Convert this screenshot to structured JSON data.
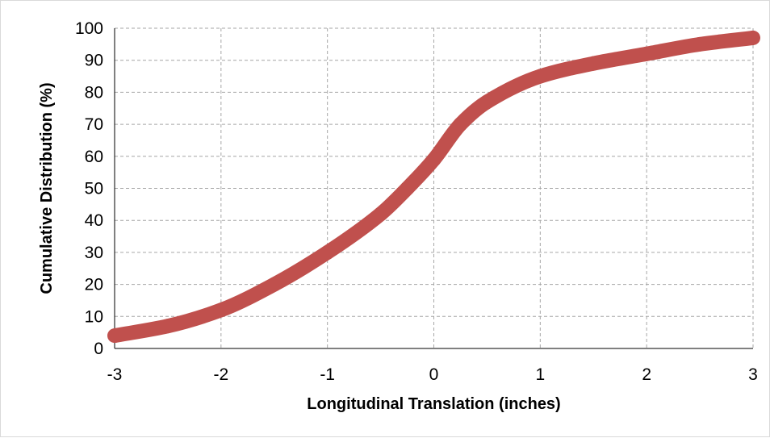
{
  "chart_data": {
    "type": "line",
    "title": "",
    "xlabel": "Longitudinal  Translation (inches)",
    "ylabel": "Cumulative Distribution (%)",
    "xlim": [
      -3,
      3
    ],
    "ylim": [
      0,
      100
    ],
    "x_ticks": [
      "-3",
      "-2",
      "-1",
      "0",
      "1",
      "2",
      "3"
    ],
    "y_ticks": [
      "0",
      "10",
      "20",
      "30",
      "40",
      "50",
      "60",
      "70",
      "80",
      "90",
      "100"
    ],
    "grid": true,
    "legend": "none",
    "series": [
      {
        "color": "#c0504d",
        "x": [
          -3,
          -2.5,
          -2,
          -1.5,
          -1,
          -0.5,
          -0.25,
          0,
          0.25,
          0.5,
          1,
          1.5,
          2,
          2.5,
          3
        ],
        "values": [
          4,
          7,
          12,
          20,
          30,
          42,
          50,
          59,
          70,
          77,
          85,
          89,
          92,
          95,
          97
        ]
      }
    ]
  }
}
